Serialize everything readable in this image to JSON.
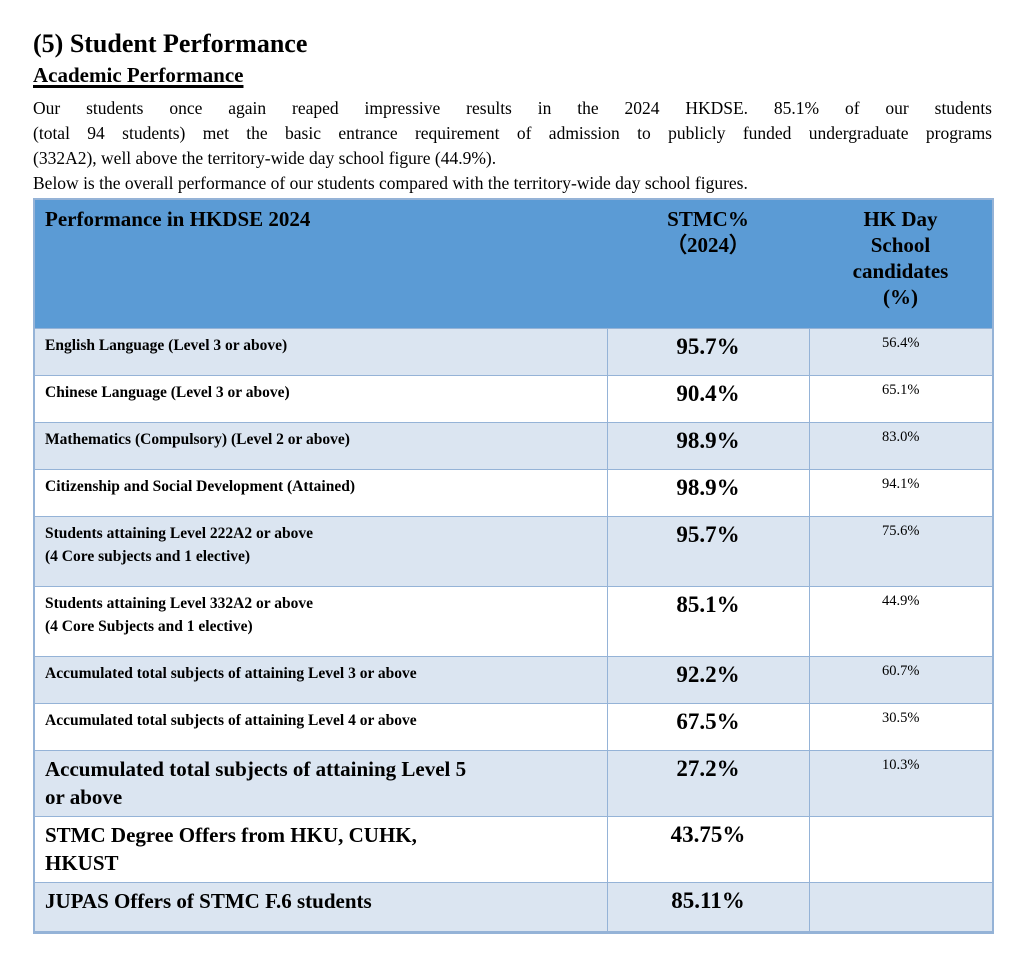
{
  "page": {
    "heading": "(5) Student Performance",
    "subheading": "Academic Performance",
    "intro_lines": [
      "Our students once again reaped impressive results in the 2024 HKDSE. 85.1% of our students",
      "(total 94 students) met the basic entrance requirement of admission to publicly funded undergraduate programs",
      "(332A2), well above the territory-wide day school figure (44.9%)."
    ],
    "table_lead_in": "Below is the overall performance of our students compared with the territory-wide day school figures."
  },
  "table": {
    "headers": [
      "Performance in HKDSE 2024",
      "STMC%\n（2024）",
      "HK Day\nSchool\ncandidates\n(%)"
    ],
    "rows": [
      {
        "label": "English Language (Level 3 or above)",
        "stmc": "95.7%",
        "hk": "56.4%"
      },
      {
        "label": "Chinese Language (Level 3 or above)",
        "stmc": "90.4%",
        "hk": "65.1%"
      },
      {
        "label": "Mathematics (Compulsory) (Level 2 or above)",
        "stmc": "98.9%",
        "hk": "83.0%"
      },
      {
        "label": "Citizenship and Social Development (Attained)",
        "stmc": "98.9%",
        "hk": "94.1%"
      },
      {
        "label": "Students attaining Level 222A2 or above\n(4 Core subjects and 1 elective)",
        "stmc": "95.7%",
        "hk": "75.6%"
      },
      {
        "label": "Students attaining Level 332A2 or above\n(4 Core Subjects and 1 elective)",
        "stmc": "85.1%",
        "hk": "44.9%"
      },
      {
        "label": "Accumulated total subjects of attaining Level 3 or above",
        "stmc": "92.2%",
        "hk": "60.7%"
      },
      {
        "label": "Accumulated total subjects of attaining Level 4 or above",
        "stmc": "67.5%",
        "hk": "30.5%"
      },
      {
        "label": "Accumulated total subjects of attaining Level 5\nor above",
        "stmc": "27.2%",
        "hk": "10.3%"
      },
      {
        "label": "STMC Degree Offers from HKU, CUHK,\nHKUST",
        "stmc": "43.75%",
        "hk": ""
      },
      {
        "label": "JUPAS Offers of STMC F.6 students",
        "stmc": "85.11%",
        "hk": ""
      }
    ]
  },
  "colors": {
    "header_bg": "#5b9bd5",
    "stripe_bg": "#dbe5f1",
    "border": "#95b3d7",
    "text": "#000000"
  }
}
